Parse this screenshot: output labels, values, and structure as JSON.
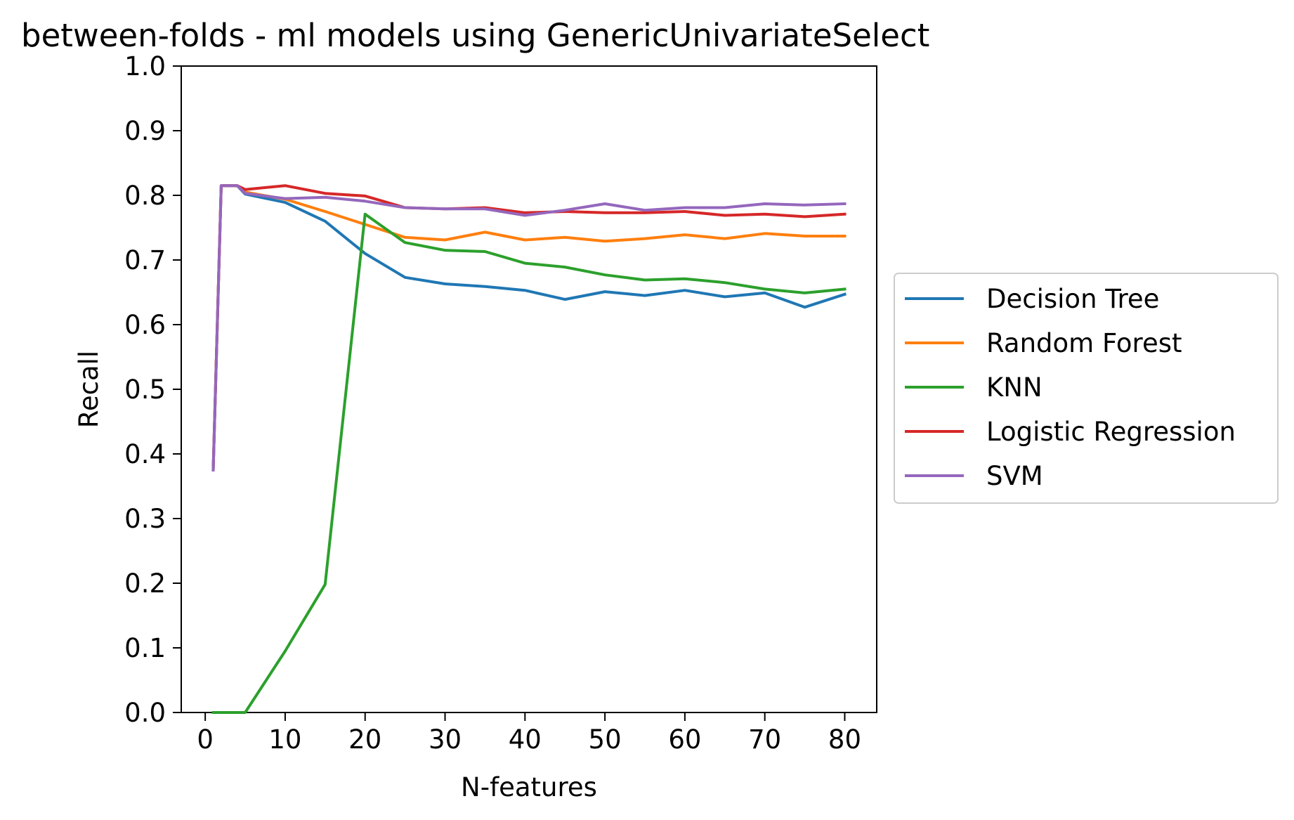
{
  "chart_data": {
    "type": "line",
    "title": "between-folds - ml models using GenericUnivariateSelect",
    "xlabel": "N-features",
    "ylabel": "Recall",
    "xlim": [
      -3,
      84
    ],
    "ylim": [
      0.0,
      1.0
    ],
    "xticks": [
      0,
      10,
      20,
      30,
      40,
      50,
      60,
      70,
      80
    ],
    "xtick_labels": [
      "0",
      "10",
      "20",
      "30",
      "40",
      "50",
      "60",
      "70",
      "80"
    ],
    "yticks": [
      0.0,
      0.1,
      0.2,
      0.3,
      0.4,
      0.5,
      0.6,
      0.7,
      0.8,
      0.9,
      1.0
    ],
    "ytick_labels": [
      "0.0",
      "0.1",
      "0.2",
      "0.3",
      "0.4",
      "0.5",
      "0.6",
      "0.7",
      "0.8",
      "0.9",
      "1.0"
    ],
    "grid": false,
    "legend_position": "outside-right",
    "series": [
      {
        "name": "Decision Tree",
        "color": "#1f77b4",
        "x": [
          1,
          2,
          3,
          4,
          5,
          10,
          15,
          20,
          25,
          30,
          35,
          40,
          45,
          50,
          55,
          60,
          65,
          70,
          75,
          80
        ],
        "y": [
          0.375,
          0.815,
          0.815,
          0.815,
          0.802,
          0.789,
          0.76,
          0.71,
          0.673,
          0.663,
          0.659,
          0.653,
          0.639,
          0.651,
          0.645,
          0.653,
          0.643,
          0.649,
          0.627,
          0.647
        ]
      },
      {
        "name": "Random Forest",
        "color": "#ff7f0e",
        "x": [
          1,
          2,
          3,
          4,
          5,
          10,
          15,
          20,
          25,
          30,
          35,
          40,
          45,
          50,
          55,
          60,
          65,
          70,
          75,
          80
        ],
        "y": [
          0.375,
          0.815,
          0.815,
          0.815,
          0.805,
          0.794,
          0.775,
          0.755,
          0.735,
          0.731,
          0.743,
          0.731,
          0.735,
          0.729,
          0.733,
          0.739,
          0.733,
          0.741,
          0.737,
          0.737
        ]
      },
      {
        "name": "KNN",
        "color": "#2ca02c",
        "x": [
          1,
          2,
          3,
          4,
          5,
          10,
          15,
          20,
          25,
          30,
          35,
          40,
          45,
          50,
          55,
          60,
          65,
          70,
          75,
          80
        ],
        "y": [
          0.0,
          0.0,
          0.0,
          0.0,
          0.0,
          0.095,
          0.198,
          0.771,
          0.727,
          0.715,
          0.713,
          0.695,
          0.689,
          0.677,
          0.669,
          0.671,
          0.665,
          0.655,
          0.649,
          0.655
        ]
      },
      {
        "name": "Logistic Regression",
        "color": "#d62728",
        "x": [
          1,
          2,
          3,
          4,
          5,
          10,
          15,
          20,
          25,
          30,
          35,
          40,
          45,
          50,
          55,
          60,
          65,
          70,
          75,
          80
        ],
        "y": [
          0.375,
          0.815,
          0.815,
          0.815,
          0.809,
          0.815,
          0.803,
          0.799,
          0.781,
          0.779,
          0.781,
          0.773,
          0.775,
          0.773,
          0.773,
          0.775,
          0.769,
          0.771,
          0.767,
          0.771
        ]
      },
      {
        "name": "SVM",
        "color": "#9467bd",
        "x": [
          1,
          2,
          3,
          4,
          5,
          10,
          15,
          20,
          25,
          30,
          35,
          40,
          45,
          50,
          55,
          60,
          65,
          70,
          75,
          80
        ],
        "y": [
          0.375,
          0.815,
          0.815,
          0.815,
          0.803,
          0.795,
          0.797,
          0.791,
          0.781,
          0.779,
          0.779,
          0.769,
          0.777,
          0.787,
          0.777,
          0.781,
          0.781,
          0.787,
          0.785,
          0.787
        ]
      }
    ]
  }
}
